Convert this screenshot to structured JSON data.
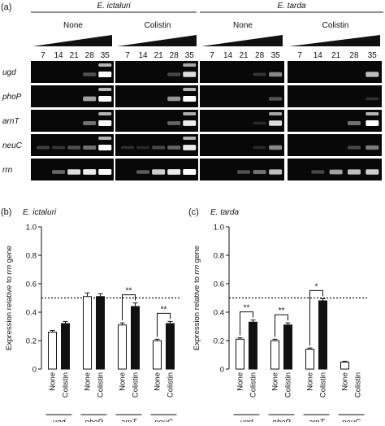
{
  "panel_a": {
    "label": "(a)",
    "species": [
      {
        "name": "E. ictaluri",
        "treatments": [
          "None",
          "Colistin"
        ]
      },
      {
        "name": "E. tarda",
        "treatments": [
          "None",
          "Colistin"
        ]
      }
    ],
    "cycles": [
      "7",
      "14",
      "21",
      "28",
      "35"
    ],
    "genes": [
      "ugd",
      "phoP",
      "arnT",
      "neuC",
      "rrn"
    ],
    "band_intensity": {
      "ugd": [
        [
          0,
          0,
          0,
          0.35,
          1
        ],
        [
          0,
          0,
          0,
          0.3,
          0.9
        ],
        [
          0,
          0,
          0,
          0.2,
          0.6
        ],
        [
          0,
          0,
          0,
          0,
          0.8
        ]
      ],
      "phoP": [
        [
          0,
          0,
          0,
          0.7,
          1
        ],
        [
          0,
          0,
          0,
          0.65,
          1
        ],
        [
          0,
          0,
          0,
          0,
          0.35
        ],
        [
          0,
          0,
          0,
          0,
          0.15
        ]
      ],
      "arnT": [
        [
          0,
          0,
          0,
          0.5,
          1
        ],
        [
          0,
          0,
          0,
          0.45,
          0.95
        ],
        [
          0,
          0,
          0,
          0.1,
          0.9
        ],
        [
          0,
          0,
          0,
          0.5,
          1
        ]
      ],
      "neuC": [
        [
          0.25,
          0.2,
          0.35,
          0.5,
          1
        ],
        [
          0.15,
          0.1,
          0.3,
          0.45,
          0.95
        ],
        [
          0,
          0,
          0,
          0.1,
          0.6
        ],
        [
          0,
          0,
          0,
          0.3,
          0.55
        ]
      ],
      "rrn": [
        [
          0,
          0.45,
          0.9,
          0.95,
          1
        ],
        [
          0,
          0.4,
          0.85,
          0.95,
          1
        ],
        [
          0,
          0,
          0.35,
          0.5,
          0.8
        ],
        [
          0,
          0.3,
          0.7,
          0.8,
          0.85
        ]
      ]
    }
  },
  "panel_b": {
    "label": "(b)",
    "title": "E. ictaluri",
    "ylabel_prefix": "Expression relative to ",
    "ylabel_italic": "rrn",
    "ylabel_suffix": " gene",
    "xlabels": [
      "None",
      "Colistin"
    ]
  },
  "panel_c": {
    "label": "(c)",
    "title": "E. tarda",
    "ylabel_prefix": "Expression relative to ",
    "ylabel_italic": "rrn",
    "ylabel_suffix": " gene",
    "xlabels": [
      "None",
      "Colistin"
    ]
  },
  "chart_data": [
    {
      "type": "bar",
      "title": "E. ictaluri",
      "ylabel": "Expression relative to rrn gene",
      "categories": [
        "ugd",
        "phoP",
        "arnT",
        "neuC"
      ],
      "series": [
        {
          "name": "None",
          "values": [
            0.26,
            0.51,
            0.31,
            0.2
          ],
          "errors": [
            0.012,
            0.025,
            0.015,
            0.01
          ]
        },
        {
          "name": "Colistin",
          "values": [
            0.32,
            0.51,
            0.44,
            0.32
          ],
          "errors": [
            0.015,
            0.02,
            0.025,
            0.015
          ]
        }
      ],
      "ylim": [
        0,
        1.0
      ],
      "yticks": [
        "0",
        "0.2",
        "0.4",
        "0.6",
        "0.8",
        "1.0"
      ],
      "reference_line": 0.5,
      "significance": [
        {
          "category": "arnT",
          "label": "**"
        },
        {
          "category": "neuC",
          "label": "**"
        }
      ]
    },
    {
      "type": "bar",
      "title": "E. tarda",
      "ylabel": "Expression relative to rrn gene",
      "categories": [
        "ugd",
        "phoP",
        "arnT",
        "neuC"
      ],
      "series": [
        {
          "name": "None",
          "values": [
            0.21,
            0.2,
            0.14,
            0.05
          ],
          "errors": [
            0.01,
            0.01,
            0.008,
            0.005
          ]
        },
        {
          "name": "Colistin",
          "values": [
            0.33,
            0.31,
            0.48,
            0.0
          ],
          "errors": [
            0.015,
            0.015,
            0.015,
            0
          ]
        }
      ],
      "ylim": [
        0,
        1.0
      ],
      "yticks": [
        "0",
        "0.2",
        "0.4",
        "0.6",
        "0.8",
        "1.0"
      ],
      "reference_line": 0.5,
      "significance": [
        {
          "category": "ugd",
          "label": "**"
        },
        {
          "category": "phoP",
          "label": "**"
        },
        {
          "category": "arnT",
          "label": "*"
        }
      ]
    }
  ]
}
